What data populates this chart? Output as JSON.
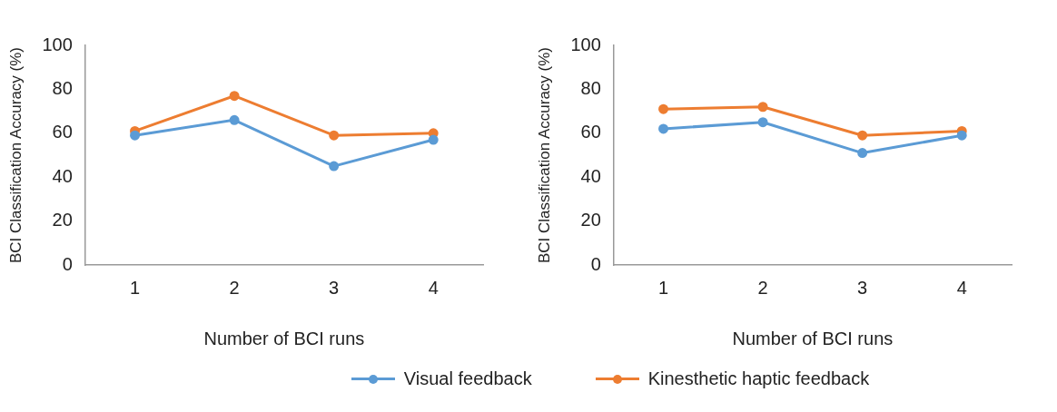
{
  "chart_data": [
    {
      "type": "line",
      "xlabel": "Number of BCI runs",
      "ylabel": "BCI Classification Accuracy (%)",
      "categories": [
        "1",
        "2",
        "3",
        "4"
      ],
      "ylim": [
        0,
        100
      ],
      "yticks": [
        0,
        20,
        40,
        60,
        80,
        100
      ],
      "grid": false,
      "marker": "circle",
      "legend": "bottom",
      "series": [
        {
          "name": "Visual feedback",
          "color": "#5b9bd5",
          "values": [
            59,
            66,
            45,
            57
          ]
        },
        {
          "name": "Kinesthetic haptic feedback",
          "color": "#ed7d31",
          "values": [
            61,
            77,
            59,
            60
          ]
        }
      ]
    },
    {
      "type": "line",
      "xlabel": "Number of BCI runs",
      "ylabel": "BCI Classification Accuracy (%)",
      "categories": [
        "1",
        "2",
        "3",
        "4"
      ],
      "ylim": [
        0,
        100
      ],
      "yticks": [
        0,
        20,
        40,
        60,
        80,
        100
      ],
      "grid": false,
      "marker": "circle",
      "series": [
        {
          "color": "#5b9bd5",
          "values": [
            62,
            65,
            51,
            59
          ]
        },
        {
          "color": "#ed7d31",
          "values": [
            71,
            72,
            59,
            61
          ]
        }
      ]
    }
  ]
}
